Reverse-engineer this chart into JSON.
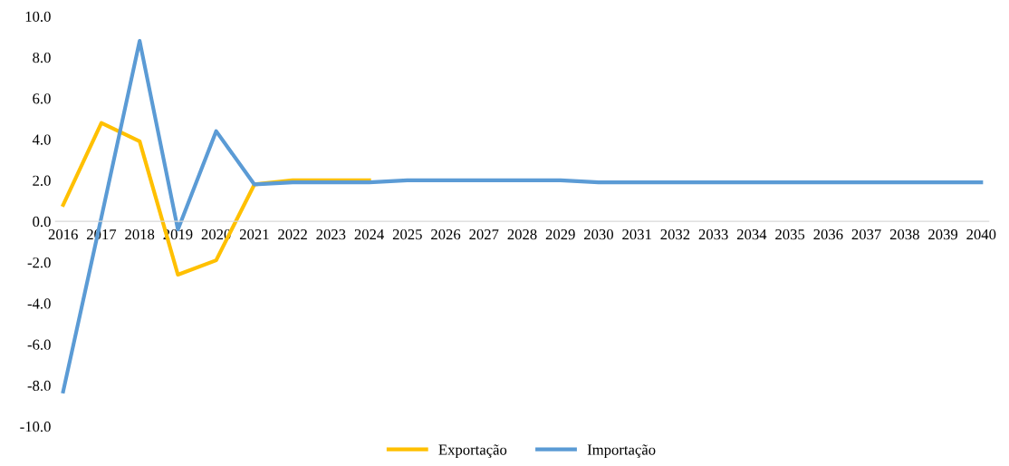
{
  "chart_data": {
    "type": "line",
    "categories": [
      "2016",
      "2017",
      "2018",
      "2019",
      "2020",
      "2021",
      "2022",
      "2023",
      "2024",
      "2025",
      "2026",
      "2027",
      "2028",
      "2029",
      "2030",
      "2031",
      "2032",
      "2033",
      "2034",
      "2035",
      "2036",
      "2037",
      "2038",
      "2039",
      "2040"
    ],
    "series": [
      {
        "name": "Exportação",
        "color": "#ffc000",
        "values": [
          0.8,
          4.8,
          3.9,
          -2.6,
          -1.9,
          1.8,
          2.0,
          2.0,
          2.0,
          null,
          null,
          null,
          null,
          null,
          null,
          null,
          null,
          null,
          null,
          null,
          null,
          null,
          null,
          null,
          null
        ]
      },
      {
        "name": "Importação",
        "color": "#5b9bd5",
        "values": [
          -8.3,
          0.2,
          8.8,
          -0.4,
          4.4,
          1.8,
          1.9,
          1.9,
          1.9,
          2.0,
          2.0,
          2.0,
          2.0,
          2.0,
          1.9,
          1.9,
          1.9,
          1.9,
          1.9,
          1.9,
          1.9,
          1.9,
          1.9,
          1.9,
          1.9
        ]
      }
    ],
    "ylim": [
      -10,
      10
    ],
    "yticks": [
      {
        "value": -10,
        "label": "-10.0"
      },
      {
        "value": -8,
        "label": "-8.0"
      },
      {
        "value": -6,
        "label": "-6.0"
      },
      {
        "value": -4,
        "label": "-4.0"
      },
      {
        "value": -2,
        "label": "-2.0"
      },
      {
        "value": 0,
        "label": "0.0"
      },
      {
        "value": 2,
        "label": "2.0"
      },
      {
        "value": 4,
        "label": "4.0"
      },
      {
        "value": 6,
        "label": "6.0"
      },
      {
        "value": 8,
        "label": "8.0"
      },
      {
        "value": 10,
        "label": "10.0"
      }
    ],
    "grid": false,
    "legend": "bottom",
    "marker": "none",
    "line_style": "solid"
  }
}
